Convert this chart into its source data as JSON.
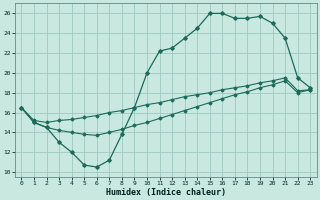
{
  "xlabel": "Humidex (Indice chaleur)",
  "bg_color": "#c8e8e0",
  "grid_color": "#a0c8c0",
  "line_color": "#1a6b5a",
  "xlim": [
    -0.5,
    23.5
  ],
  "ylim": [
    9.5,
    27.0
  ],
  "xticks": [
    0,
    1,
    2,
    3,
    4,
    5,
    6,
    7,
    8,
    9,
    10,
    11,
    12,
    13,
    14,
    15,
    16,
    17,
    18,
    19,
    20,
    21,
    22,
    23
  ],
  "yticks": [
    10,
    12,
    14,
    16,
    18,
    20,
    22,
    24,
    26
  ],
  "line1_x": [
    0,
    1,
    2,
    3,
    4,
    5,
    6,
    7,
    8,
    9,
    10,
    11,
    12,
    13,
    14,
    15,
    16,
    17,
    18,
    19,
    20,
    21,
    22,
    23
  ],
  "line1_y": [
    16.5,
    15.0,
    14.5,
    13.0,
    12.0,
    10.7,
    10.5,
    11.2,
    13.8,
    16.5,
    20.0,
    22.2,
    22.5,
    23.5,
    24.5,
    26.0,
    26.0,
    25.5,
    25.5,
    25.7,
    25.0,
    23.5,
    19.5,
    18.5
  ],
  "line2_x": [
    0,
    1,
    2,
    3,
    4,
    5,
    6,
    7,
    8,
    9,
    10,
    11,
    12,
    13,
    14,
    15,
    16,
    17,
    18,
    19,
    20,
    21,
    22,
    23
  ],
  "line2_y": [
    16.5,
    15.2,
    15.0,
    15.2,
    15.3,
    15.5,
    15.7,
    16.0,
    16.2,
    16.5,
    16.8,
    17.0,
    17.3,
    17.6,
    17.8,
    18.0,
    18.3,
    18.5,
    18.7,
    19.0,
    19.2,
    19.5,
    18.2,
    18.3
  ],
  "line3_x": [
    0,
    1,
    2,
    3,
    4,
    5,
    6,
    7,
    8,
    9,
    10,
    11,
    12,
    13,
    14,
    15,
    16,
    17,
    18,
    19,
    20,
    21,
    22,
    23
  ],
  "line3_y": [
    16.5,
    15.0,
    14.5,
    14.2,
    14.0,
    13.8,
    13.7,
    14.0,
    14.3,
    14.7,
    15.0,
    15.4,
    15.8,
    16.2,
    16.6,
    17.0,
    17.4,
    17.8,
    18.1,
    18.5,
    18.8,
    19.2,
    18.0,
    18.3
  ]
}
